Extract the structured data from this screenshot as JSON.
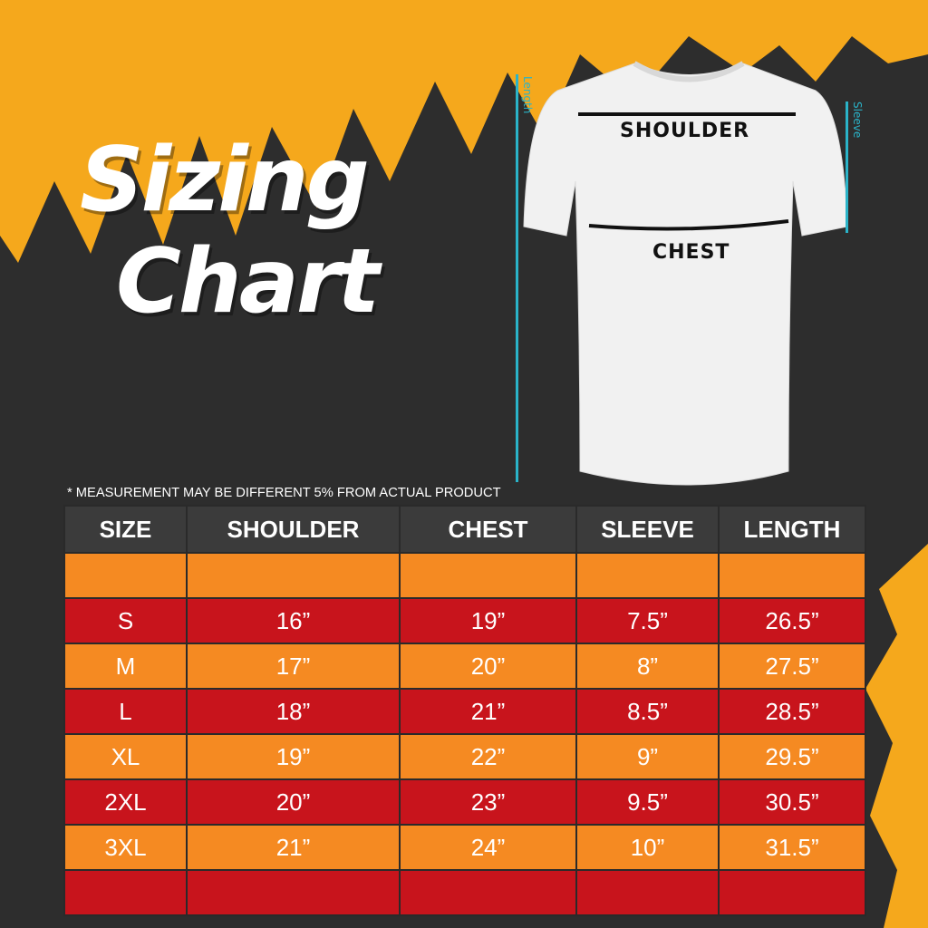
{
  "title_line1": "Sizing",
  "title_line2": "Chart",
  "diagram": {
    "shoulder_label": "SHOULDER",
    "chest_label": "CHEST",
    "length_label": "Length",
    "sleeve_label": "Sleeve"
  },
  "note": "* MEASUREMENT MAY BE DIFFERENT 5% FROM ACTUAL PRODUCT",
  "colors": {
    "orange": "#f58a22",
    "red": "#c8141c",
    "header": "#3b3b3b",
    "accent": "#2ab3c8",
    "splash": "#f5a81c"
  },
  "table": {
    "headers": [
      "SIZE",
      "SHOULDER",
      "CHEST",
      "SLEEVE",
      "LENGTH"
    ],
    "rows": [
      [
        "S",
        "16”",
        "19”",
        "7.5”",
        "26.5”"
      ],
      [
        "M",
        "17”",
        "20”",
        "8”",
        "27.5”"
      ],
      [
        "L",
        "18”",
        "21”",
        "8.5”",
        "28.5”"
      ],
      [
        "XL",
        "19”",
        "22”",
        "9”",
        "29.5”"
      ],
      [
        "2XL",
        "20”",
        "23”",
        "9.5”",
        "30.5”"
      ],
      [
        "3XL",
        "21”",
        "24”",
        "10”",
        "31.5”"
      ]
    ]
  }
}
